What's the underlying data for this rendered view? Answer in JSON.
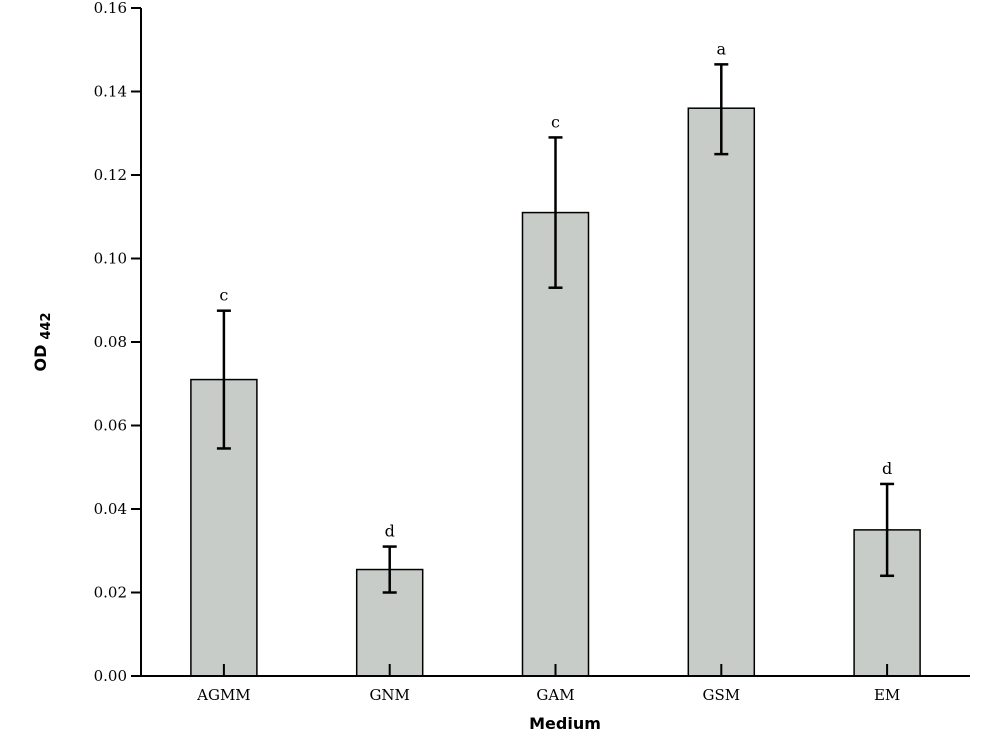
{
  "chart_data": {
    "type": "bar",
    "xlabel": "Medium",
    "ylabel": "OD",
    "ylabel_subscript": "442",
    "ylim": [
      0,
      0.16
    ],
    "yticks": [
      "0.00",
      "0.02",
      "0.04",
      "0.06",
      "0.08",
      "0.10",
      "0.12",
      "0.14",
      "0.16"
    ],
    "categories": [
      "AGMM",
      "GNM",
      "GAM",
      "GSM",
      "EM"
    ],
    "series": [
      {
        "values": [
          0.071,
          0.0255,
          0.111,
          0.136,
          0.035
        ],
        "error_low": [
          0.0545,
          0.02,
          0.093,
          0.125,
          0.024
        ],
        "error_high": [
          0.0875,
          0.031,
          0.129,
          0.1465,
          0.046
        ],
        "significance": [
          "c",
          "d",
          "c",
          "a",
          "d"
        ]
      }
    ],
    "bar_color": "#c8ccc8",
    "grid": false,
    "legend": "none"
  }
}
